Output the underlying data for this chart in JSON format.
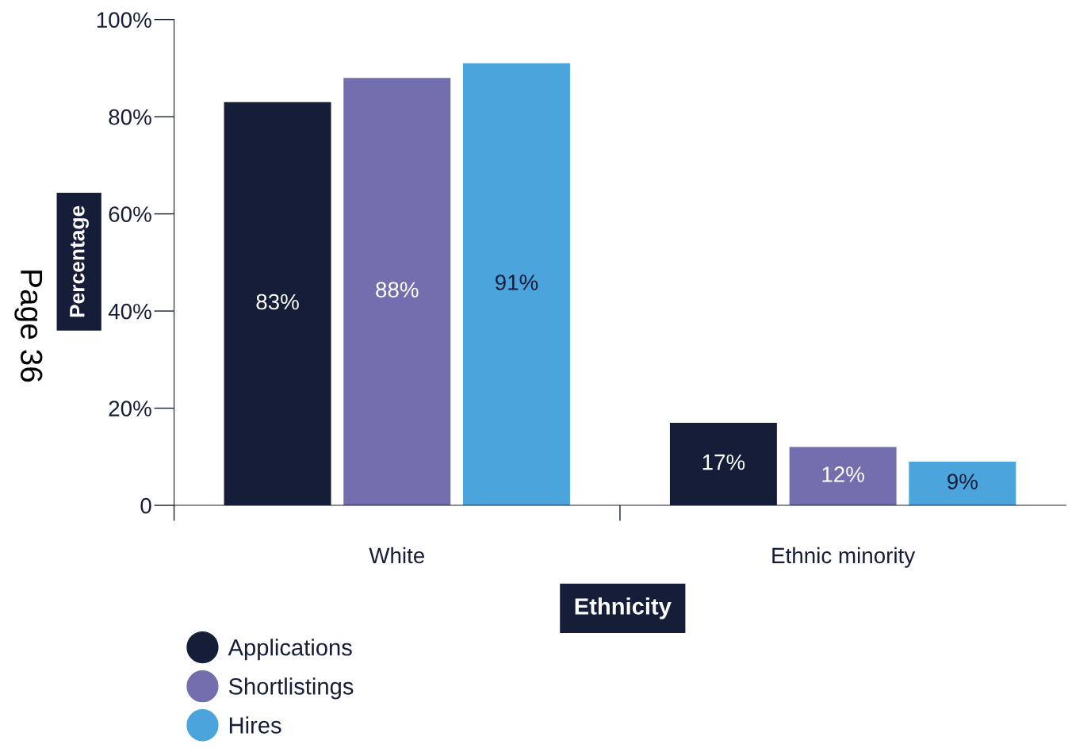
{
  "chart_data": {
    "type": "bar",
    "xlabel": "Ethnicity",
    "ylabel": "Percentage",
    "categories": [
      "White",
      "Ethnic minority"
    ],
    "series": [
      {
        "name": "Applications",
        "color": "#151d38",
        "values": [
          83,
          17
        ],
        "value_labels": [
          "83%",
          "17%"
        ]
      },
      {
        "name": "Shortlistings",
        "color": "#736fae",
        "values": [
          88,
          12
        ],
        "value_labels": [
          "88%",
          "12%"
        ]
      },
      {
        "name": "Hires",
        "color": "#4ba4db",
        "values": [
          91,
          9
        ],
        "value_labels": [
          "91%",
          "9%"
        ]
      }
    ],
    "ylim": [
      0,
      100
    ],
    "yticks": [
      0,
      {
        "value": 20,
        "label": "20%"
      },
      {
        "value": 40,
        "label": "40%"
      },
      {
        "value": 60,
        "label": "60%"
      },
      {
        "value": 80,
        "label": "80%"
      },
      {
        "value": 100,
        "label": "100%"
      }
    ],
    "grid": false,
    "legend": "bottom left",
    "marker": "circle",
    "annotations": [
      "Page 36"
    ]
  }
}
